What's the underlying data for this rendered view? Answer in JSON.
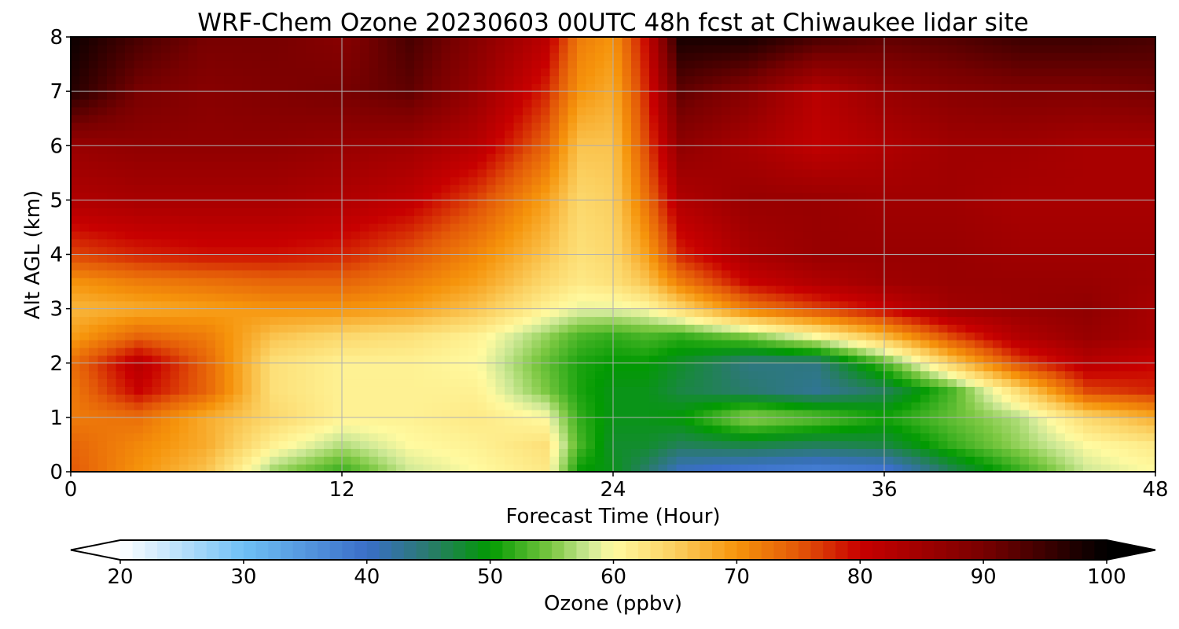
{
  "chart_data": {
    "type": "heatmap",
    "title": "WRF-Chem Ozone  20230603 00UTC 48h fcst at Chiwaukee lidar site",
    "xlabel": "Forecast Time (Hour)",
    "ylabel": "Alt AGL (km)",
    "xlim": [
      0,
      48
    ],
    "ylim": [
      0,
      8
    ],
    "x_ticks": [
      "0",
      "12",
      "24",
      "36",
      "48"
    ],
    "y_ticks": [
      "0",
      "1",
      "2",
      "3",
      "4",
      "5",
      "6",
      "7",
      "8"
    ],
    "grid": true,
    "x": [
      0,
      3,
      6,
      9,
      12,
      15,
      18,
      21,
      22.5,
      24,
      25.5,
      27,
      30,
      33,
      36,
      39,
      42,
      45,
      48
    ],
    "y": [
      0,
      0.5,
      1,
      1.5,
      2,
      2.5,
      3,
      3.5,
      4,
      5,
      6,
      7,
      8
    ],
    "z": [
      [
        75,
        70,
        66,
        56,
        52,
        58,
        60,
        62,
        50,
        49,
        45,
        40,
        38,
        37,
        38,
        46,
        52,
        58,
        60
      ],
      [
        74,
        71,
        68,
        61,
        57,
        60,
        61,
        63,
        53,
        48,
        48,
        46,
        47,
        46,
        47,
        52,
        56,
        60,
        62
      ],
      [
        72,
        73,
        68,
        64,
        61,
        61,
        62,
        60,
        52,
        49,
        49,
        50,
        56,
        54,
        51,
        54,
        57,
        64,
        68
      ],
      [
        72,
        80,
        74,
        63,
        61,
        61,
        61,
        55,
        51,
        49,
        49,
        47,
        45,
        43,
        46,
        53,
        64,
        76,
        78
      ],
      [
        73,
        82,
        74,
        63,
        61,
        61,
        60,
        54,
        51,
        50,
        50,
        48,
        44,
        44,
        53,
        65,
        76,
        82,
        80
      ],
      [
        69,
        74,
        72,
        66,
        64,
        63,
        61,
        56,
        53,
        52,
        53,
        52,
        55,
        60,
        67,
        76,
        83,
        86,
        84
      ],
      [
        67,
        68,
        69,
        70,
        70,
        69,
        66,
        61,
        59,
        59,
        60,
        64,
        72,
        76,
        80,
        85,
        86,
        87,
        84
      ],
      [
        70,
        72,
        73,
        74,
        74,
        72,
        69,
        64,
        62,
        63,
        66,
        72,
        80,
        83,
        85,
        86,
        86,
        86,
        85
      ],
      [
        76,
        78,
        79,
        79,
        78,
        75,
        71,
        66,
        63,
        64,
        69,
        78,
        84,
        86,
        86,
        86,
        85,
        85,
        85
      ],
      [
        83,
        84,
        84,
        84,
        83,
        81,
        76,
        69,
        64,
        65,
        73,
        83,
        86,
        86,
        85,
        85,
        84,
        84,
        84
      ],
      [
        86,
        87,
        87,
        87,
        86,
        85,
        82,
        74,
        66,
        66,
        76,
        87,
        84,
        81,
        83,
        85,
        85,
        84,
        84
      ],
      [
        97,
        90,
        88,
        89,
        90,
        92,
        86,
        78,
        70,
        68,
        78,
        92,
        88,
        82,
        86,
        88,
        89,
        89,
        90
      ],
      [
        99,
        94,
        90,
        90,
        88,
        94,
        88,
        82,
        72,
        70,
        80,
        98,
        98,
        94,
        92,
        93,
        95,
        95,
        94
      ]
    ],
    "colorbar": {
      "label": "Ozone  (ppbv)",
      "vmin": 20,
      "vmax": 100,
      "extend": "both",
      "ticks": [
        "20",
        "30",
        "40",
        "50",
        "60",
        "70",
        "80",
        "90",
        "100"
      ],
      "stops": [
        [
          20,
          "#ffffff"
        ],
        [
          30,
          "#6fc0f5"
        ],
        [
          40,
          "#3a6ec8"
        ],
        [
          45,
          "#2a7a6e"
        ],
        [
          50,
          "#029a02"
        ],
        [
          55,
          "#7cc842"
        ],
        [
          58,
          "#cde896"
        ],
        [
          60,
          "#fffaa0"
        ],
        [
          65,
          "#fbcf5f"
        ],
        [
          70,
          "#f6940b"
        ],
        [
          75,
          "#e35808"
        ],
        [
          80,
          "#c80000"
        ],
        [
          90,
          "#780000"
        ],
        [
          100,
          "#000000"
        ]
      ]
    }
  }
}
